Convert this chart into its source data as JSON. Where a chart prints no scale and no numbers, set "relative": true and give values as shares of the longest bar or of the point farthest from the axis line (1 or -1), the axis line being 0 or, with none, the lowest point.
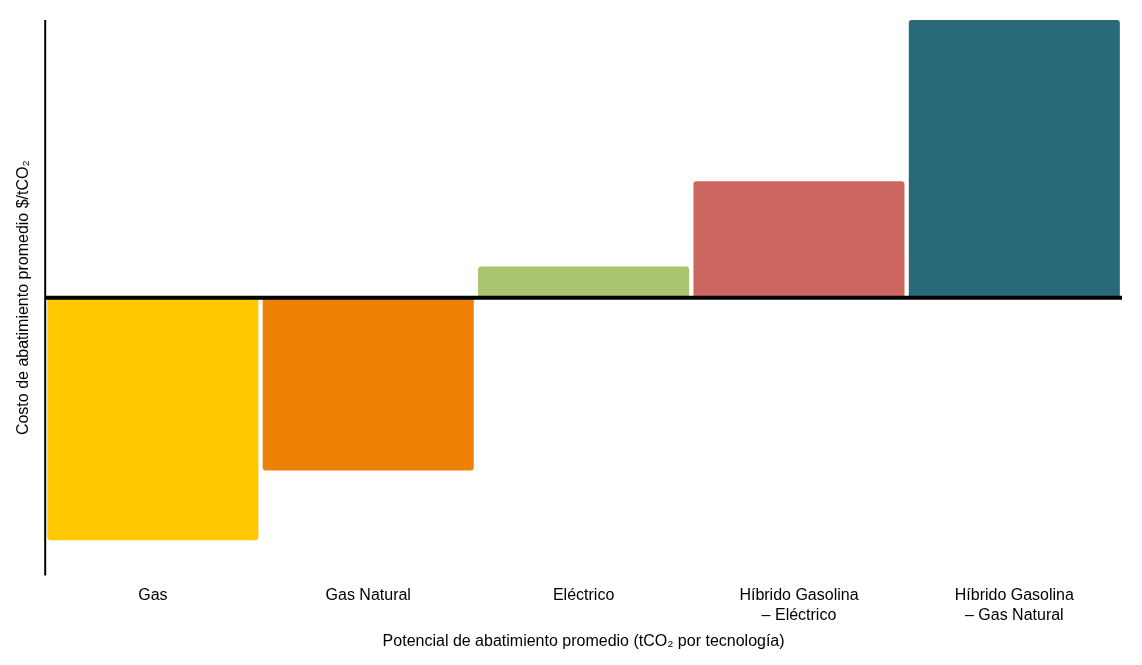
{
  "chart_data": {
    "type": "bar",
    "relative": true,
    "categories": [
      "Gas",
      "Gas Natural",
      "Eléctrico",
      "Híbrido Gasolina – Eléctrico",
      "Híbrido Gasolina – Gas Natural"
    ],
    "values": [
      -0.873,
      -0.622,
      0.112,
      0.419,
      1
    ],
    "colors": [
      "#ffc800",
      "#ec8106",
      "#a9c46c",
      "#cd665f",
      "#286a7a"
    ],
    "ylabel": "Costo de abatimiento promedio $/tCO₂",
    "xlabel": "Potencial de abatimiento promedio (tCO₂ por tecnología)",
    "grid": false,
    "legend": false
  }
}
